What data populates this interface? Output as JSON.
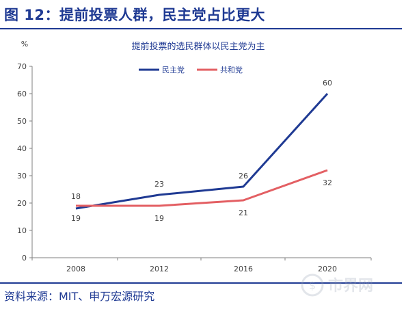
{
  "figure": {
    "title": "图 12：提前投票人群，民主党占比更大",
    "source": "资料来源：MIT、申万宏源研究",
    "watermark": "市界网"
  },
  "chart_data": {
    "type": "line",
    "title": "提前投票的选民群体以民主党为主",
    "ylabel": "%",
    "xlabel": "",
    "x": [
      "2008",
      "2012",
      "2016",
      "2020"
    ],
    "ylim": [
      0,
      70
    ],
    "yticks": [
      0,
      10,
      20,
      30,
      40,
      50,
      60,
      70
    ],
    "grid": false,
    "legend": "top-center",
    "series": [
      {
        "name": "民主党",
        "color": "#1f3a93",
        "values": [
          18,
          23,
          26,
          60
        ]
      },
      {
        "name": "共和党",
        "color": "#e35f63",
        "values": [
          19,
          19,
          21,
          32
        ]
      }
    ]
  }
}
